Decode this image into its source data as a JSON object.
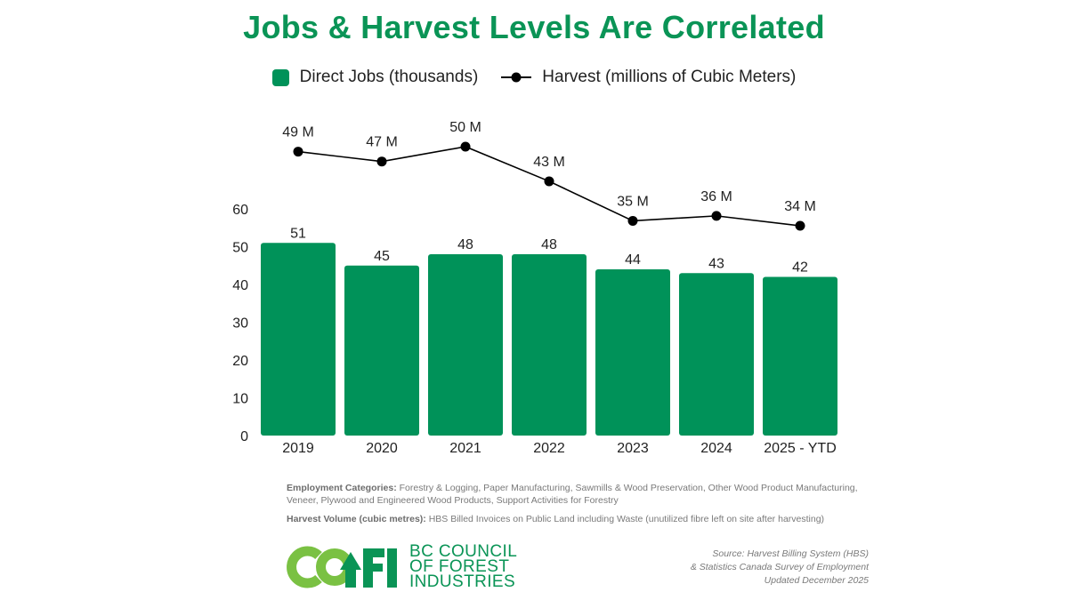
{
  "colors": {
    "bar": "#009259",
    "line": "#000000",
    "title": "#0a9456",
    "logo_light": "#7ac143",
    "logo_dark": "#0a9456"
  },
  "chart_data": {
    "type": "bar",
    "title": "Jobs & Harvest Levels Are Correlated",
    "categories": [
      "2019",
      "2020",
      "2021",
      "2022",
      "2023",
      "2024",
      "2025 - YTD"
    ],
    "ylim": [
      0,
      60
    ],
    "y_ticks": [
      "0",
      "10",
      "20",
      "30",
      "40",
      "50",
      "60"
    ],
    "legend_position": "top-center",
    "grid": false,
    "series": [
      {
        "name": "Direct Jobs (thousands)",
        "kind": "bar",
        "values": [
          51,
          45,
          48,
          48,
          44,
          43,
          42
        ],
        "labels": [
          "51",
          "45",
          "48",
          "48",
          "44",
          "43",
          "42"
        ]
      },
      {
        "name": "Harvest (millions of Cubic Meters)",
        "kind": "line",
        "values": [
          49,
          47,
          50,
          43,
          35,
          36,
          34
        ],
        "labels": [
          "49 M",
          "47 M",
          "50 M",
          "43 M",
          "35 M",
          "36 M",
          "34 M"
        ]
      }
    ]
  },
  "notes": {
    "employment_label": "Employment Categories:",
    "employment_text": " Forestry & Logging, Paper Manufacturing, Sawmills & Wood Preservation, Other Wood Product Manufacturing, Veneer, Plywood and Engineered Wood Products, Support Activities for Forestry",
    "harvest_label": "Harvest Volume (cubic metres):",
    "harvest_text": " HBS Billed Invoices on Public Land including Waste (unutilized fibre left on site after harvesting)"
  },
  "logo": {
    "letters": "COFI",
    "line1": "BC COUNCIL",
    "line2": "OF FOREST",
    "line3": "INDUSTRIES"
  },
  "source": {
    "line1": "Source: Harvest Billing System (HBS)",
    "line2": "& Statistics Canada Survey of Employment",
    "line3": "Updated December 2025"
  }
}
